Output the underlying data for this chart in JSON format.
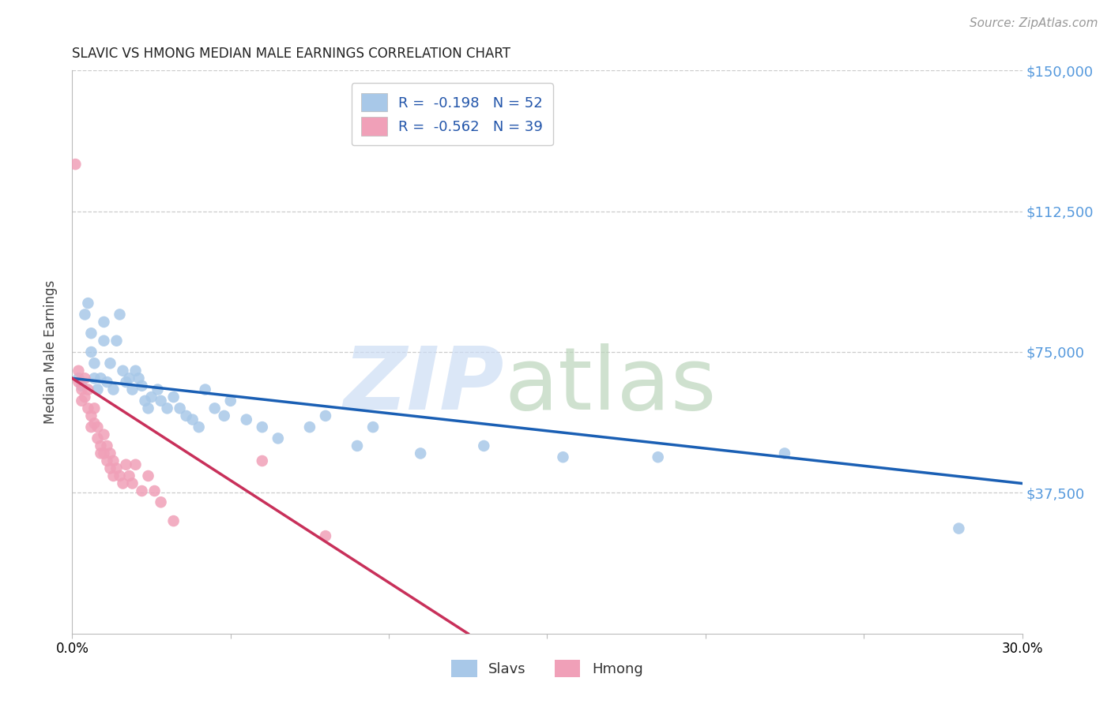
{
  "title": "SLAVIC VS HMONG MEDIAN MALE EARNINGS CORRELATION CHART",
  "source": "Source: ZipAtlas.com",
  "ylabel": "Median Male Earnings",
  "xmin": 0.0,
  "xmax": 0.3,
  "ymin": 0,
  "ymax": 150000,
  "slavs_color": "#a8c8e8",
  "hmong_color": "#f0a0b8",
  "slavs_line_color": "#1a5fb4",
  "hmong_line_color": "#c8305a",
  "slavs_R": "-0.198",
  "slavs_N": "52",
  "hmong_R": "-0.562",
  "hmong_N": "39",
  "ytick_values": [
    37500,
    75000,
    112500,
    150000
  ],
  "ytick_labels": [
    "$37,500",
    "$75,000",
    "$112,500",
    "$150,000"
  ],
  "grid_color": "#cccccc",
  "slavs_regline_x": [
    0.0,
    0.3
  ],
  "slavs_regline_y": [
    68000,
    40000
  ],
  "hmong_regline_x": [
    0.0,
    0.125
  ],
  "hmong_regline_y": [
    68000,
    0
  ],
  "slavs_x": [
    0.002,
    0.003,
    0.004,
    0.005,
    0.006,
    0.006,
    0.007,
    0.007,
    0.008,
    0.009,
    0.01,
    0.01,
    0.011,
    0.012,
    0.013,
    0.014,
    0.015,
    0.016,
    0.017,
    0.018,
    0.019,
    0.02,
    0.021,
    0.022,
    0.023,
    0.024,
    0.025,
    0.027,
    0.028,
    0.03,
    0.032,
    0.034,
    0.036,
    0.038,
    0.04,
    0.042,
    0.045,
    0.048,
    0.05,
    0.055,
    0.06,
    0.065,
    0.075,
    0.08,
    0.09,
    0.095,
    0.11,
    0.13,
    0.155,
    0.185,
    0.225,
    0.28
  ],
  "slavs_y": [
    68000,
    66000,
    85000,
    88000,
    80000,
    75000,
    72000,
    68000,
    65000,
    68000,
    83000,
    78000,
    67000,
    72000,
    65000,
    78000,
    85000,
    70000,
    67000,
    68000,
    65000,
    70000,
    68000,
    66000,
    62000,
    60000,
    63000,
    65000,
    62000,
    60000,
    63000,
    60000,
    58000,
    57000,
    55000,
    65000,
    60000,
    58000,
    62000,
    57000,
    55000,
    52000,
    55000,
    58000,
    50000,
    55000,
    48000,
    50000,
    47000,
    47000,
    48000,
    28000
  ],
  "hmong_x": [
    0.001,
    0.002,
    0.002,
    0.003,
    0.003,
    0.004,
    0.004,
    0.005,
    0.005,
    0.006,
    0.006,
    0.007,
    0.007,
    0.008,
    0.008,
    0.009,
    0.009,
    0.01,
    0.01,
    0.011,
    0.011,
    0.012,
    0.012,
    0.013,
    0.013,
    0.014,
    0.015,
    0.016,
    0.017,
    0.018,
    0.019,
    0.02,
    0.022,
    0.024,
    0.026,
    0.028,
    0.032,
    0.06,
    0.08
  ],
  "hmong_y": [
    125000,
    70000,
    67000,
    65000,
    62000,
    68000,
    63000,
    60000,
    65000,
    58000,
    55000,
    60000,
    56000,
    52000,
    55000,
    50000,
    48000,
    53000,
    48000,
    50000,
    46000,
    48000,
    44000,
    46000,
    42000,
    44000,
    42000,
    40000,
    45000,
    42000,
    40000,
    45000,
    38000,
    42000,
    38000,
    35000,
    30000,
    46000,
    26000
  ]
}
